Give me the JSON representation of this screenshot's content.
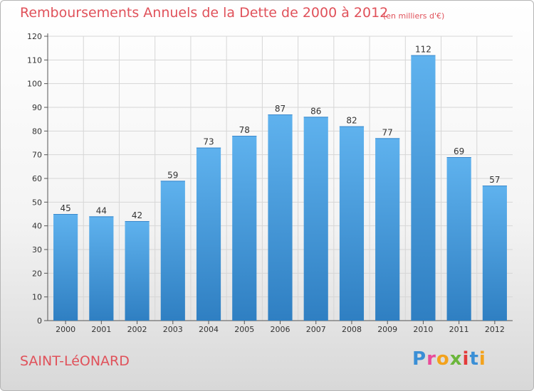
{
  "chart_data": {
    "type": "bar",
    "title": "Remboursements Annuels de la Dette de 2000 à 2012",
    "unit_label": "(en milliers d'€)",
    "categories": [
      "2000",
      "2001",
      "2002",
      "2003",
      "2004",
      "2005",
      "2006",
      "2007",
      "2008",
      "2009",
      "2010",
      "2011",
      "2012"
    ],
    "values": [
      45,
      44,
      42,
      59,
      73,
      78,
      87,
      86,
      82,
      77,
      112,
      69,
      57
    ],
    "value_labels": [
      "45",
      "44",
      "42",
      "59",
      "73",
      "78",
      "87",
      "86",
      "82",
      "77",
      "112",
      "69",
      "57"
    ],
    "yticks": [
      0,
      10,
      20,
      30,
      40,
      50,
      60,
      70,
      80,
      90,
      100,
      110,
      120
    ],
    "ytick_labels": [
      "0",
      "10",
      "20",
      "30",
      "40",
      "50",
      "60",
      "70",
      "80",
      "90",
      "100",
      "110",
      "120"
    ],
    "ylim": [
      0,
      120
    ],
    "xlabel": "",
    "ylabel": "",
    "grid": true,
    "legend": "none",
    "bar_color": "#4ea6e4"
  },
  "footer": {
    "commune": "SAINT-LéONARD",
    "logo_letters": [
      "P",
      "r",
      "o",
      "x",
      "i",
      "t",
      "i"
    ],
    "logo_colors": [
      "#3a8fd6",
      "#e94b9a",
      "#f3a21c",
      "#6bb63b",
      "#e33a3a",
      "#3a8fd6",
      "#f3a21c"
    ]
  },
  "colors": {
    "title": "#e0515a",
    "grid": "#d6d6d6",
    "axis_text": "#333333"
  }
}
